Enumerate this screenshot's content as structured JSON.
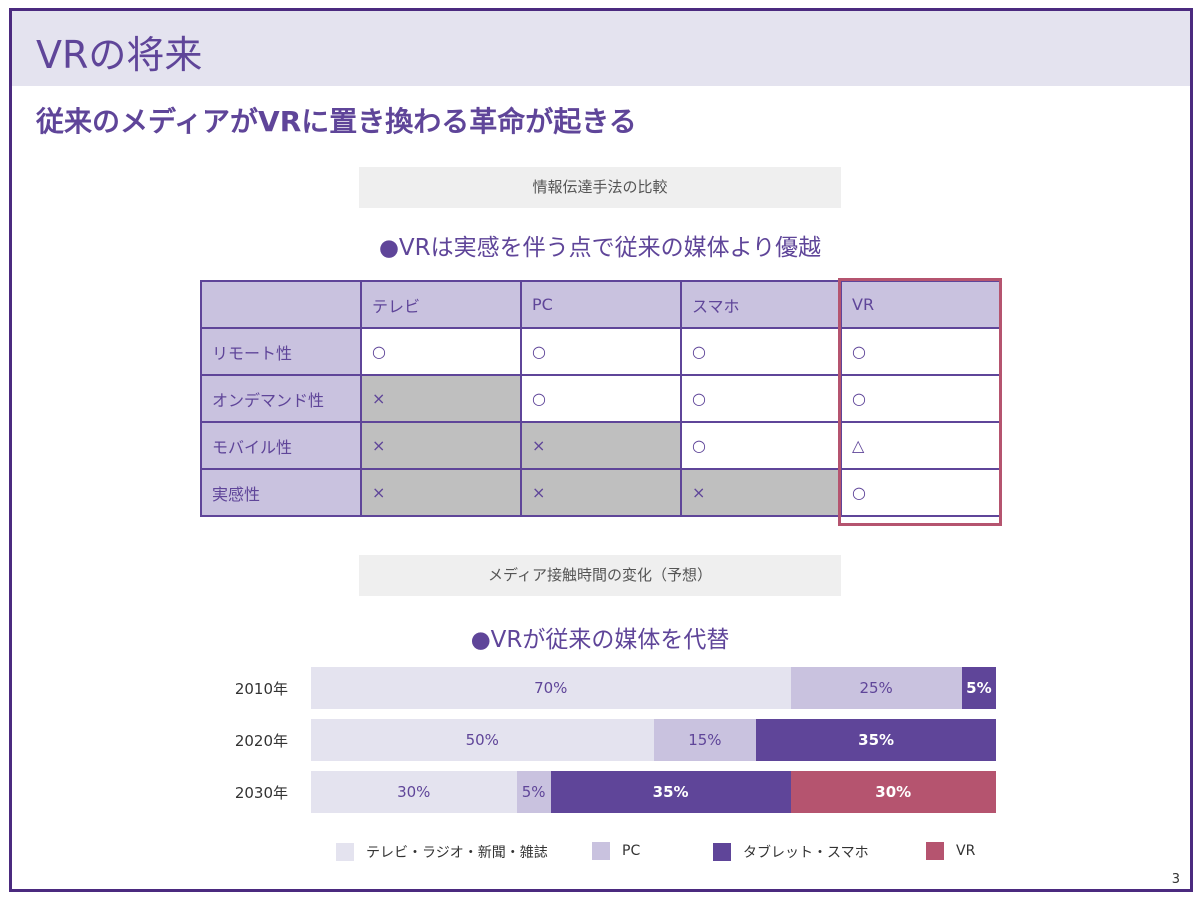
{
  "header": {
    "title": "VRの将来",
    "subtitle": "従来のメディアがVRに置き換わる革命が起きる"
  },
  "section1": {
    "caption": "情報伝達手法の比較",
    "bullet": "●VRは実感を伴う点で従来の媒体より優越",
    "table": {
      "headers": [
        "",
        "テレビ",
        "PC",
        "スマホ",
        "VR"
      ],
      "rows": [
        [
          "リモート性",
          "○",
          "○",
          "○",
          "○"
        ],
        [
          "オンデマンド性",
          "×",
          "○",
          "○",
          "○"
        ],
        [
          "モバイル性",
          "×",
          "×",
          "○",
          "△"
        ],
        [
          "実感性",
          "×",
          "×",
          "×",
          "○"
        ]
      ]
    }
  },
  "section2": {
    "caption": "メディア接触時間の変化（予想）",
    "bullet": "●VRが従来の媒体を代替"
  },
  "chart_data": {
    "type": "bar",
    "stacked": true,
    "orientation": "horizontal",
    "categories": [
      "2010年",
      "2020年",
      "2030年"
    ],
    "series": [
      {
        "name": "テレビ・ラジオ・新聞・雑誌",
        "values": [
          70,
          50,
          30
        ],
        "color": "#e4e3ef"
      },
      {
        "name": "PC",
        "values": [
          25,
          15,
          5
        ],
        "color": "#c9c2df"
      },
      {
        "name": "タブレット・スマホ",
        "values": [
          5,
          35,
          35
        ],
        "color": "#5f4599"
      },
      {
        "name": "VR",
        "values": [
          0,
          0,
          30
        ],
        "color": "#b5546f"
      }
    ],
    "legend": "bottom"
  },
  "page_number": "3"
}
